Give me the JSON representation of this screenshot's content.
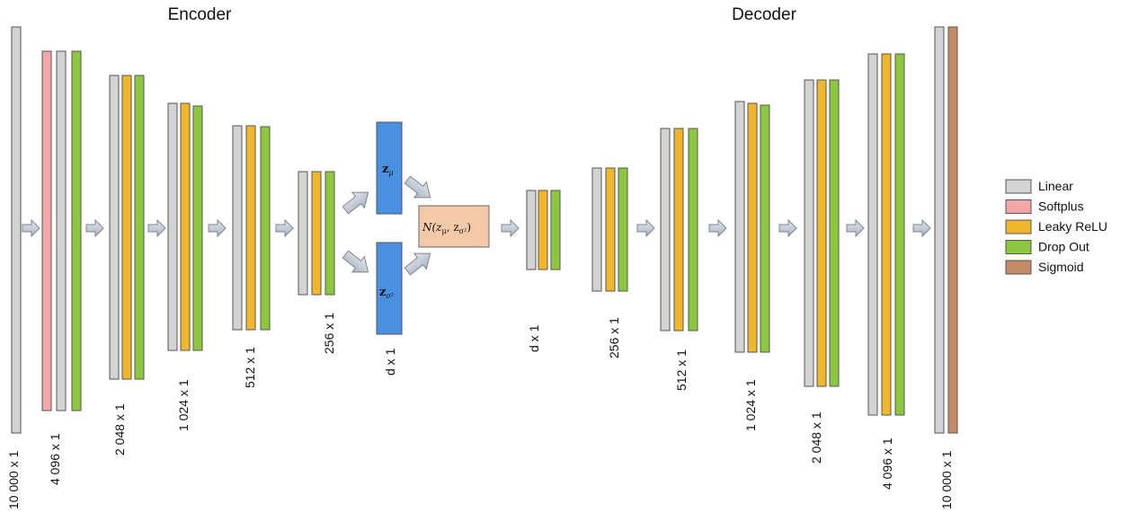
{
  "titles": {
    "encoder": "Encoder",
    "decoder": "Decoder"
  },
  "layer_types": {
    "linear": {
      "label": "Linear",
      "color": "#d3d3d3"
    },
    "softplus": {
      "label": "Softplus",
      "color": "#f2a6a6"
    },
    "leaky": {
      "label": "Leaky ReLU",
      "color": "#f0b62c"
    },
    "dropout": {
      "label": "Drop Out",
      "color": "#8dc63f"
    },
    "sigmoid": {
      "label": "Sigmoid",
      "color": "#c58a66"
    }
  },
  "legend": [
    "linear",
    "softplus",
    "leaky",
    "dropout",
    "sigmoid"
  ],
  "encoder": [
    {
      "size": "10 000 x 1",
      "layers": [
        "linear"
      ]
    },
    {
      "size": "4 096 x 1",
      "layers": [
        "softplus",
        "linear",
        "dropout"
      ]
    },
    {
      "size": "2 048 x 1",
      "layers": [
        "linear",
        "leaky",
        "dropout"
      ]
    },
    {
      "size": "1 024 x 1",
      "layers": [
        "linear",
        "leaky",
        "dropout"
      ]
    },
    {
      "size": "512 x 1",
      "layers": [
        "linear",
        "leaky",
        "dropout"
      ]
    },
    {
      "size": "256 x 1",
      "layers": [
        "linear",
        "leaky",
        "dropout"
      ]
    }
  ],
  "latent": {
    "mu_label": "z",
    "mu_sub": "μ",
    "sigma_label": "z",
    "sigma_sub": "σ²",
    "size": "d x 1",
    "mu_color": "#4a90e2",
    "sigma_color": "#4a90e2",
    "sample_text": "N(z",
    "sample_mid": ", z",
    "sample_end": ")",
    "sample_color": "#f4c9a8"
  },
  "decoder": [
    {
      "size": "d x 1",
      "layers": [
        "linear",
        "leaky",
        "dropout"
      ]
    },
    {
      "size": "256 x 1",
      "layers": [
        "linear",
        "leaky",
        "dropout"
      ]
    },
    {
      "size": "512 x 1",
      "layers": [
        "linear",
        "leaky",
        "dropout"
      ]
    },
    {
      "size": "1 024 x 1",
      "layers": [
        "linear",
        "leaky",
        "dropout"
      ]
    },
    {
      "size": "2 048 x 1",
      "layers": [
        "linear",
        "leaky",
        "dropout"
      ]
    },
    {
      "size": "4 096 x 1",
      "layers": [
        "linear",
        "leaky",
        "dropout"
      ]
    },
    {
      "size": "10 000 x 1",
      "layers": [
        "linear",
        "sigmoid"
      ]
    }
  ]
}
